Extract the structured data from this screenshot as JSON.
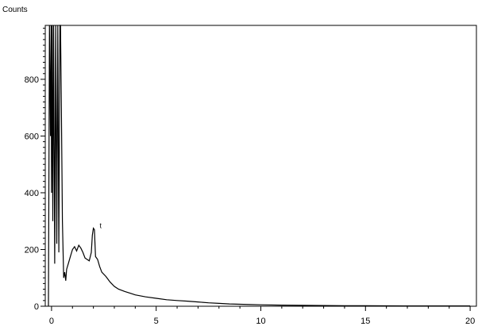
{
  "chart_data": {
    "type": "line",
    "title": "",
    "xlabel": "",
    "ylabel": "Counts",
    "xlim": [
      -0.3,
      20.3
    ],
    "ylim": [
      0,
      990
    ],
    "x_ticks": [
      0,
      5,
      10,
      15,
      20
    ],
    "x_tick_labels": [
      "0",
      "5",
      "10",
      "15",
      "20"
    ],
    "y_ticks": [
      0,
      200,
      400,
      600,
      800
    ],
    "y_tick_labels": [
      "0",
      "200",
      "400",
      "600",
      "800"
    ],
    "grid": false,
    "legend": "none",
    "annotations": [
      {
        "text": "t",
        "x": 2.3,
        "y": 275
      }
    ],
    "colors": {
      "line": "#000000",
      "axes": "#000000",
      "background": "#ffffff"
    },
    "series": [
      {
        "x": [
          -0.15,
          -0.1,
          -0.05,
          -0.02,
          0.0,
          0.03,
          0.06,
          0.1,
          0.15,
          0.2,
          0.25,
          0.3,
          0.35,
          0.4,
          0.43,
          0.47,
          0.52,
          0.58,
          0.63,
          0.68,
          0.72,
          0.8,
          0.9,
          1.0,
          1.1,
          1.2,
          1.3,
          1.4,
          1.5,
          1.6,
          1.7,
          1.8,
          1.9,
          1.95,
          2.0,
          2.05,
          2.1,
          2.2,
          2.3,
          2.4,
          2.6,
          2.8,
          3.0,
          3.2,
          3.5,
          3.8,
          4.0,
          4.5,
          5.0,
          5.5,
          6.0,
          6.5,
          7.0,
          7.5,
          8.0,
          8.5,
          9.0,
          9.5,
          10.0,
          11.0,
          12.0,
          13.0,
          14.0,
          15.0,
          16.0,
          17.0,
          18.0,
          19.0,
          20.0
        ],
        "y": [
          0,
          990,
          600,
          990,
          400,
          990,
          300,
          990,
          150,
          990,
          220,
          990,
          190,
          990,
          990,
          700,
          300,
          100,
          120,
          90,
          130,
          150,
          175,
          200,
          210,
          195,
          215,
          205,
          190,
          170,
          165,
          160,
          190,
          250,
          275,
          270,
          175,
          165,
          140,
          120,
          105,
          85,
          70,
          60,
          52,
          45,
          40,
          33,
          28,
          23,
          20,
          18,
          15,
          12,
          10,
          8,
          7,
          6,
          5,
          4,
          3,
          2.5,
          2,
          1.8,
          1.5,
          1.2,
          1,
          1,
          1
        ]
      }
    ]
  }
}
